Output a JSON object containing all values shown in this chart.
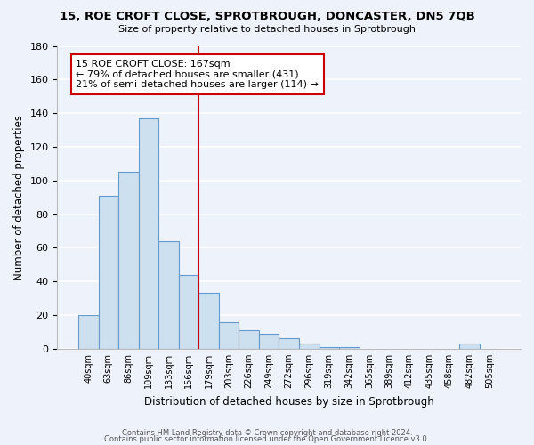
{
  "title": "15, ROE CROFT CLOSE, SPROTBROUGH, DONCASTER, DN5 7QB",
  "subtitle": "Size of property relative to detached houses in Sprotbrough",
  "xlabel": "Distribution of detached houses by size in Sprotbrough",
  "ylabel": "Number of detached properties",
  "bin_labels": [
    "40sqm",
    "63sqm",
    "86sqm",
    "109sqm",
    "133sqm",
    "156sqm",
    "179sqm",
    "203sqm",
    "226sqm",
    "249sqm",
    "272sqm",
    "296sqm",
    "319sqm",
    "342sqm",
    "365sqm",
    "389sqm",
    "412sqm",
    "435sqm",
    "458sqm",
    "482sqm",
    "505sqm"
  ],
  "bar_values": [
    20,
    91,
    105,
    137,
    64,
    44,
    33,
    16,
    11,
    9,
    6,
    3,
    1,
    1,
    0,
    0,
    0,
    0,
    0,
    3,
    0
  ],
  "bar_color": "#cce0f0",
  "bar_edge_color": "#6699cc",
  "vline_x": 5.5,
  "vline_color": "#cc0000",
  "annotation_title": "15 ROE CROFT CLOSE: 167sqm",
  "annotation_line1": "← 79% of detached houses are smaller (431)",
  "annotation_line2": "21% of semi-detached houses are larger (114) →",
  "annotation_box_color": "#ffffff",
  "annotation_box_edge_color": "#cc0000",
  "ylim": [
    0,
    180
  ],
  "yticks": [
    0,
    20,
    40,
    60,
    80,
    100,
    120,
    140,
    160,
    180
  ],
  "footer1": "Contains HM Land Registry data © Crown copyright and database right 2024.",
  "footer2": "Contains public sector information licensed under the Open Government Licence v3.0.",
  "background_color": "#eef3fb"
}
